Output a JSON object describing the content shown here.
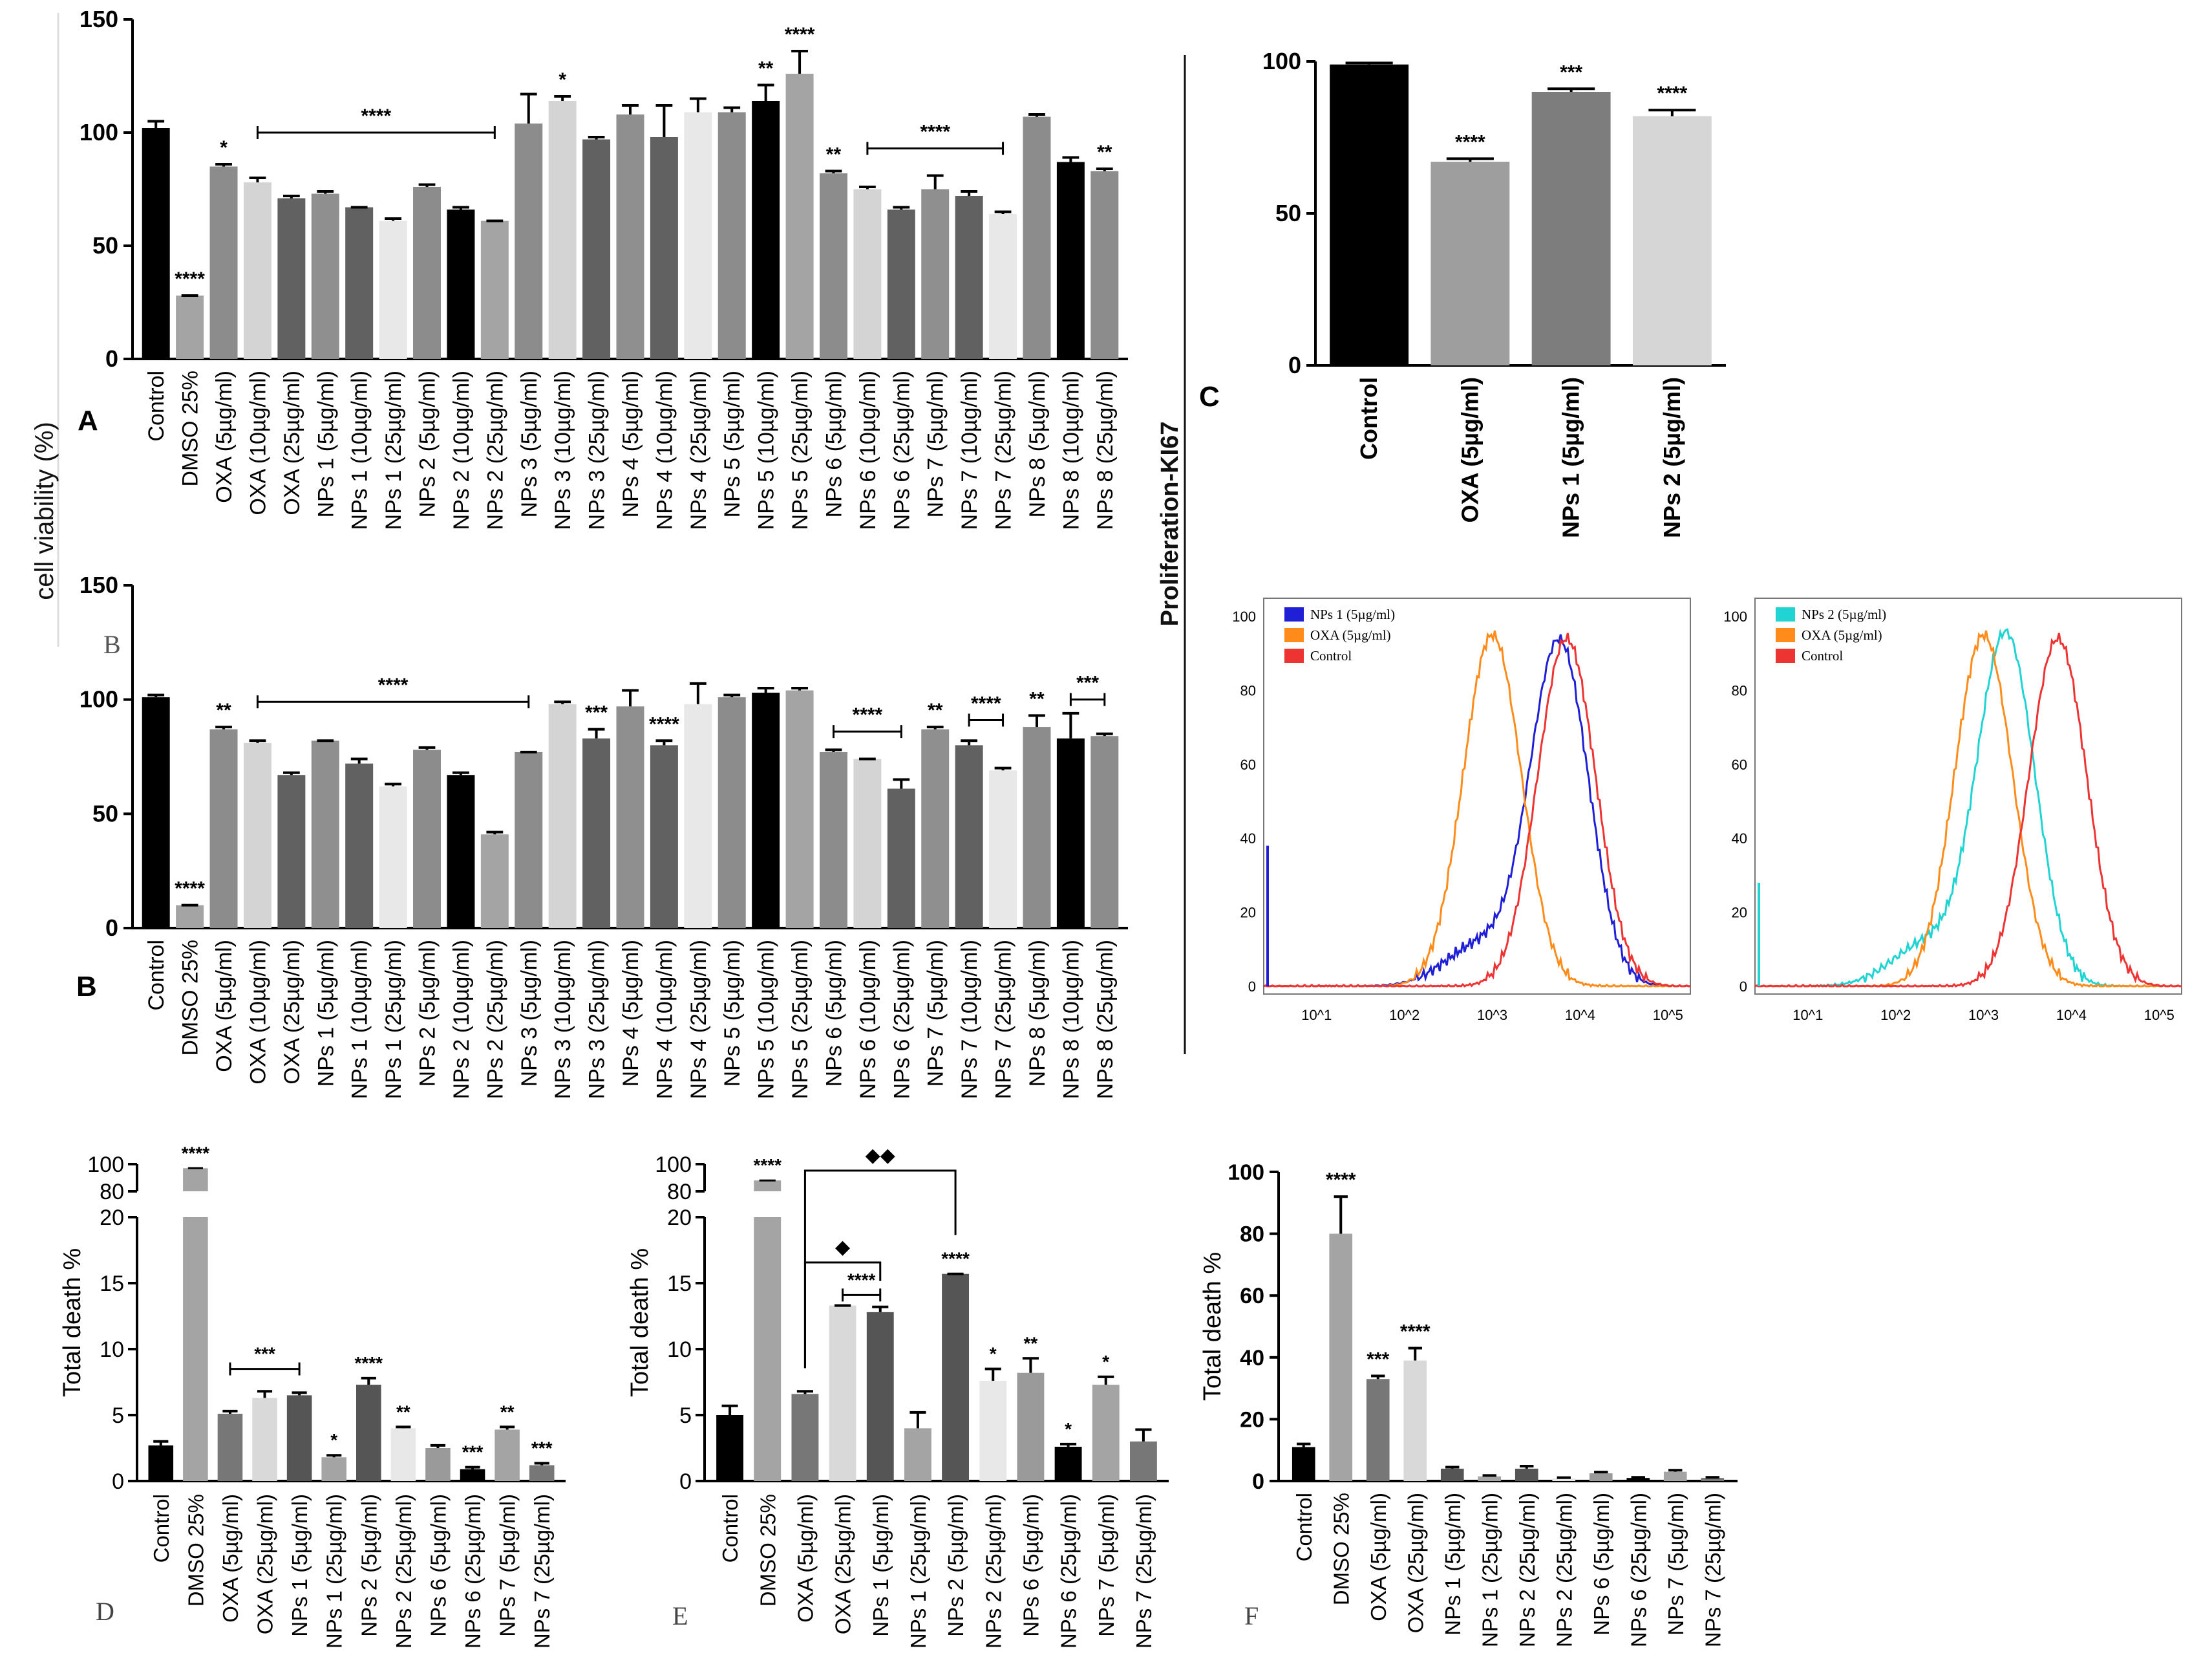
{
  "figure": {
    "panel_letters": {
      "A": "A",
      "B": "B",
      "B_inner": "B",
      "C": "C",
      "D": "D",
      "E": "E",
      "F": "F"
    },
    "shared_ylabel": "cell viability (%)",
    "kd_ylabel": "Proliferation-KI67"
  },
  "chart_data": [
    {
      "id": "A",
      "type": "bar",
      "ylabel": "cell viability (%)",
      "ylim": [
        0,
        150
      ],
      "yticks": [
        0,
        50,
        100,
        150
      ],
      "categories": [
        "Control",
        "DMSO 25%",
        "OXA (5µg/ml)",
        "OXA (10µg/ml)",
        "OXA (25µg/ml)",
        "NPs 1 (5µg/ml)",
        "NPs 1 (10µg/ml)",
        "NPs 1 (25µg/ml)",
        "NPs 2 (5µg/ml)",
        "NPs 2 (10µg/ml)",
        "NPs 2 (25µg/ml)",
        "NPs 3 (5µg/ml)",
        "NPs 3 (10µg/ml)",
        "NPs 3 (25µg/ml)",
        "NPs 4 (5µg/ml)",
        "NPs 4 (10µg/ml)",
        "NPs 4 (25µg/ml)",
        "NPs 5 (5µg/ml)",
        "NPs 5 (10µg/ml)",
        "NPs 5 (25µg/ml)",
        "NPs 6 (5µg/ml)",
        "NPs 6 (10µg/ml)",
        "NPs 6 (25µg/ml)",
        "NPs 7 (5µg/ml)",
        "NPs 7 (10µg/ml)",
        "NPs 7 (25µg/ml)",
        "NPs 8 (5µg/ml)",
        "NPs 8 (10µg/ml)",
        "NPs 8 (25µg/ml)"
      ],
      "values": [
        102,
        28,
        85,
        78,
        71,
        73,
        67,
        61,
        76,
        66,
        61,
        104,
        114,
        97,
        108,
        98,
        109,
        109,
        114,
        126,
        82,
        75,
        66,
        75,
        72,
        64,
        107,
        87,
        83
      ],
      "errors": [
        3,
        0,
        1,
        2,
        1,
        1,
        0,
        1,
        1,
        1,
        0,
        13,
        2,
        1,
        4,
        14,
        6,
        2,
        7,
        10,
        1,
        1,
        1,
        6,
        2,
        1,
        1,
        2,
        1
      ],
      "annotations": [
        {
          "bar": 1,
          "text": "****"
        },
        {
          "bar": 2,
          "text": "*"
        },
        {
          "bar": 12,
          "text": "*"
        },
        {
          "bar": 18,
          "text": "**"
        },
        {
          "bar": 19,
          "text": "****"
        },
        {
          "bar": 20,
          "text": "**"
        },
        {
          "bar": 28,
          "text": "**"
        }
      ],
      "brackets": [
        {
          "from": 3,
          "to": 10,
          "level": 100,
          "text": "****"
        },
        {
          "from": 21,
          "to": 25,
          "level": 93,
          "text": "****"
        }
      ]
    },
    {
      "id": "B",
      "type": "bar",
      "ylabel": "cell viability (%)",
      "ylim": [
        0,
        150
      ],
      "yticks": [
        0,
        50,
        100,
        150
      ],
      "categories": [
        "Control",
        "DMSO 25%",
        "OXA (5µg/ml)",
        "OXA (10µg/ml)",
        "OXA (25µg/ml)",
        "NPs 1 (5µg/ml)",
        "NPs 1 (10µg/ml)",
        "NPs 1 (25µg/ml)",
        "NPs 2 (5µg/ml)",
        "NPs 2 (10µg/ml)",
        "NPs 2 (25µg/ml)",
        "NPs 3 (5µg/ml)",
        "NPs 3 (10µg/ml)",
        "NPs 3 (25µg/ml)",
        "NPs 4 (5µg/ml)",
        "NPs 4 (10µg/ml)",
        "NPs 4 (25µg/ml)",
        "NPs 5 (5µg/ml)",
        "NPs 5 (10µg/ml)",
        "NPs 5 (25µg/ml)",
        "NPs 6 (5µg/ml)",
        "NPs 6 (10µg/ml)",
        "NPs 6 (25µg/ml)",
        "NPs 7 (5µg/ml)",
        "NPs 7 (10µg/ml)",
        "NPs 7 (25µg/ml)",
        "NPs 8 (5µg/ml)",
        "NPs 8 (10µg/ml)",
        "NPs 8 (25µg/ml)"
      ],
      "values": [
        101,
        10,
        87,
        81,
        67,
        82,
        72,
        62,
        78,
        67,
        41,
        77,
        98,
        83,
        97,
        80,
        98,
        101,
        103,
        104,
        77,
        74,
        61,
        87,
        80,
        69,
        88,
        83,
        84
      ],
      "errors": [
        1,
        0,
        1,
        1,
        1,
        0,
        2,
        1,
        1,
        1,
        1,
        0,
        1,
        4,
        7,
        2,
        9,
        1,
        2,
        1,
        1,
        0,
        4,
        1,
        2,
        1,
        5,
        11,
        1
      ],
      "annotations": [
        {
          "bar": 1,
          "text": "****"
        },
        {
          "bar": 2,
          "text": "**"
        },
        {
          "bar": 13,
          "text": "***"
        },
        {
          "bar": 15,
          "text": "****"
        },
        {
          "bar": 23,
          "text": "**"
        },
        {
          "bar": 26,
          "text": "**"
        }
      ],
      "brackets": [
        {
          "from": 3,
          "to": 11,
          "level": 99,
          "text": "****"
        },
        {
          "from": 20,
          "to": 22,
          "level": 86,
          "text": "****"
        },
        {
          "from": 24,
          "to": 25,
          "level": 91,
          "text": "****"
        },
        {
          "from": 27,
          "to": 28,
          "level": 100,
          "text": "***"
        }
      ]
    },
    {
      "id": "C",
      "type": "bar",
      "ylabel": "Proliferation-KI67",
      "ylim": [
        0,
        100
      ],
      "yticks": [
        0,
        50,
        100
      ],
      "categories": [
        "Control",
        "OXA (5µg/ml)",
        "NPs 1 (5µg/ml)",
        "NPs 2 (5µg/ml)"
      ],
      "values": [
        99,
        67,
        90,
        82
      ],
      "errors": [
        0.5,
        1,
        1,
        2
      ],
      "annotations": [
        {
          "bar": 1,
          "text": "****"
        },
        {
          "bar": 2,
          "text": "***"
        },
        {
          "bar": 3,
          "text": "****"
        }
      ]
    },
    {
      "id": "FC1",
      "type": "line",
      "xlabel": "",
      "ylabel": "",
      "xscale": "log",
      "xlim": [
        2.5,
        180000
      ],
      "ylim": [
        0,
        100
      ],
      "xticks": [
        "10^1",
        "10^2",
        "10^3",
        "10^4",
        "10^5"
      ],
      "yticks": [
        0,
        20,
        40,
        60,
        80,
        100
      ],
      "legend": [
        "NPs 1 (5µg/ml)",
        "OXA (5µg/ml)",
        "Control"
      ],
      "series": [
        {
          "name": "NPs 1 (5µg/ml)",
          "color": "#1f1fd6",
          "peak_x": 5800,
          "peak_y": 93
        },
        {
          "name": "OXA (5µg/ml)",
          "color": "#ff8c1a",
          "peak_x": 1000,
          "peak_y": 95
        },
        {
          "name": "Control",
          "color": "#ee3333",
          "peak_x": 7000,
          "peak_y": 94
        }
      ]
    },
    {
      "id": "FC2",
      "type": "line",
      "xlabel": "",
      "ylabel": "",
      "xscale": "log",
      "xlim": [
        2.5,
        180000
      ],
      "ylim": [
        0,
        100
      ],
      "xticks": [
        "10^1",
        "10^2",
        "10^3",
        "10^4",
        "10^5"
      ],
      "yticks": [
        0,
        20,
        40,
        60,
        80,
        100
      ],
      "legend": [
        "NPs 2 (5µg/ml)",
        "OXA (5µg/ml)",
        "Control"
      ],
      "series": [
        {
          "name": "NPs 2 (5µg/ml)",
          "color": "#21d4d4",
          "peak_x": 1800,
          "peak_y": 95
        },
        {
          "name": "OXA (5µg/ml)",
          "color": "#ff8c1a",
          "peak_x": 1000,
          "peak_y": 95
        },
        {
          "name": "Control",
          "color": "#ee3333",
          "peak_x": 7000,
          "peak_y": 94
        }
      ]
    },
    {
      "id": "D",
      "type": "bar",
      "ylabel": "Total death %",
      "broken_axis": true,
      "yticks_lower": [
        0,
        5,
        10,
        15,
        20
      ],
      "yticks_upper": [
        80,
        100
      ],
      "categories": [
        "Control",
        "DMSO 25%",
        "OXA (5µg/ml)",
        "OXA (25µg/ml)",
        "NPs 1 (5µg/ml)",
        "NPs 1 (25µg/ml)",
        "NPs 2 (5µg/ml)",
        "NPs 2 (25µg/ml)",
        "NPs 6 (5µg/ml)",
        "NPs 6 (25µg/ml)",
        "NPs 7 (5µg/ml)",
        "NPs 7 (25µg/ml)"
      ],
      "values": [
        2.7,
        97,
        5.1,
        6.3,
        6.5,
        1.8,
        7.3,
        4.0,
        2.5,
        0.9,
        3.9,
        1.2
      ],
      "errors": [
        0.3,
        0,
        0.2,
        0.5,
        0.2,
        0.15,
        0.5,
        0.1,
        0.2,
        0.15,
        0.2,
        0.15
      ],
      "annotations": [
        {
          "bar": 1,
          "text": "****"
        },
        {
          "bar": 5,
          "text": "*"
        },
        {
          "bar": 6,
          "text": "****"
        },
        {
          "bar": 7,
          "text": "**"
        },
        {
          "bar": 9,
          "text": "***"
        },
        {
          "bar": 10,
          "text": "**"
        },
        {
          "bar": 11,
          "text": "***"
        }
      ],
      "brackets": [
        {
          "from": 2,
          "to": 4,
          "level": 8.5,
          "text": "***"
        }
      ]
    },
    {
      "id": "E",
      "type": "bar",
      "ylabel": "Total death %",
      "broken_axis": true,
      "yticks_lower": [
        0,
        5,
        10,
        15,
        20
      ],
      "yticks_upper": [
        80,
        100
      ],
      "categories": [
        "Control",
        "DMSO 25%",
        "OXA (5µg/ml)",
        "OXA (25µg/ml)",
        "NPs 1 (5µg/ml)",
        "NPs 1 (25µg/ml)",
        "NPs 2 (5µg/ml)",
        "NPs 2 (25µg/ml)",
        "NPs 6 (5µg/ml)",
        "NPs 6 (25µg/ml)",
        "NPs 7 (5µg/ml)",
        "NPs 7 (25µg/ml)"
      ],
      "values": [
        5.0,
        88,
        6.6,
        13.3,
        12.8,
        4.0,
        15.7,
        7.6,
        8.2,
        2.6,
        7.3,
        3.0
      ],
      "errors": [
        0.7,
        1,
        0.2,
        0,
        0.4,
        1.2,
        0,
        0.9,
        1.1,
        0.2,
        0.6,
        0.9
      ],
      "annotations": [
        {
          "bar": 1,
          "text": "****"
        },
        {
          "bar": 6,
          "text": "****"
        },
        {
          "bar": 7,
          "text": "*"
        },
        {
          "bar": 8,
          "text": "**"
        },
        {
          "bar": 9,
          "text": "*"
        },
        {
          "bar": 10,
          "text": "*"
        }
      ],
      "brackets": [
        {
          "from": 3,
          "to": 4,
          "level": 14.1,
          "text": "****"
        }
      ],
      "diamond_brackets": [
        {
          "from": 2,
          "to": 4,
          "text": "◆"
        },
        {
          "from": 2,
          "to": 6,
          "text": "◆◆"
        }
      ]
    },
    {
      "id": "F",
      "type": "bar",
      "ylabel": "Total death %",
      "ylim": [
        0,
        100
      ],
      "yticks": [
        0,
        20,
        40,
        60,
        80,
        100
      ],
      "categories": [
        "Control",
        "DMSO 25%",
        "OXA (5µg/ml)",
        "OXA (25µg/ml)",
        "NPs 1 (5µg/ml)",
        "NPs 1 (25µg/ml)",
        "NPs 2 (25µg/ml)",
        "NPs 2 (25µg/ml)",
        "NPs 6 (5µg/ml)",
        "NPs 6 (25µg/ml)",
        "NPs 7 (5µg/ml)",
        "NPs 7 (25µg/ml)"
      ],
      "values": [
        11,
        80,
        33,
        39,
        4,
        1.5,
        4,
        0.8,
        2.5,
        1,
        3,
        1
      ],
      "errors": [
        1,
        12,
        1,
        4,
        0.5,
        0.3,
        0.8,
        0.3,
        0.4,
        0.2,
        0.5,
        0.2
      ],
      "annotations": [
        {
          "bar": 1,
          "text": "****"
        },
        {
          "bar": 2,
          "text": "***"
        },
        {
          "bar": 3,
          "text": "****"
        }
      ]
    }
  ]
}
